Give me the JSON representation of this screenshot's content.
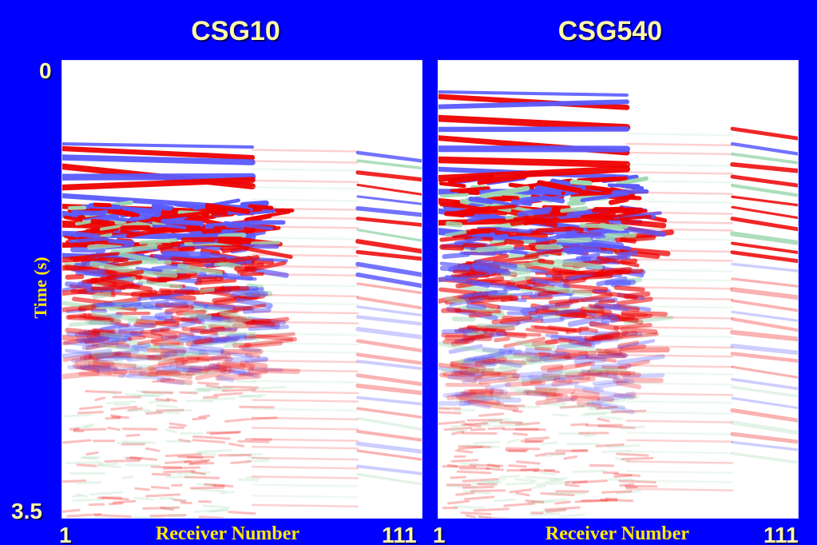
{
  "titles": {
    "left": "CSG10",
    "right": "CSG540"
  },
  "y_axis": {
    "label": "Time (s)",
    "top_tick": "0",
    "bottom_tick": "3.5"
  },
  "x_axis": {
    "label": "Receiver Number",
    "start_tick": "1",
    "end_tick": "111"
  },
  "colors": {
    "background": "#0000ff",
    "positive_amplitude": "#ee0000",
    "negative_amplitude": "#5a5aff",
    "weak_amplitude": "#9fd8b0",
    "label_text": "#fff9a8"
  }
}
